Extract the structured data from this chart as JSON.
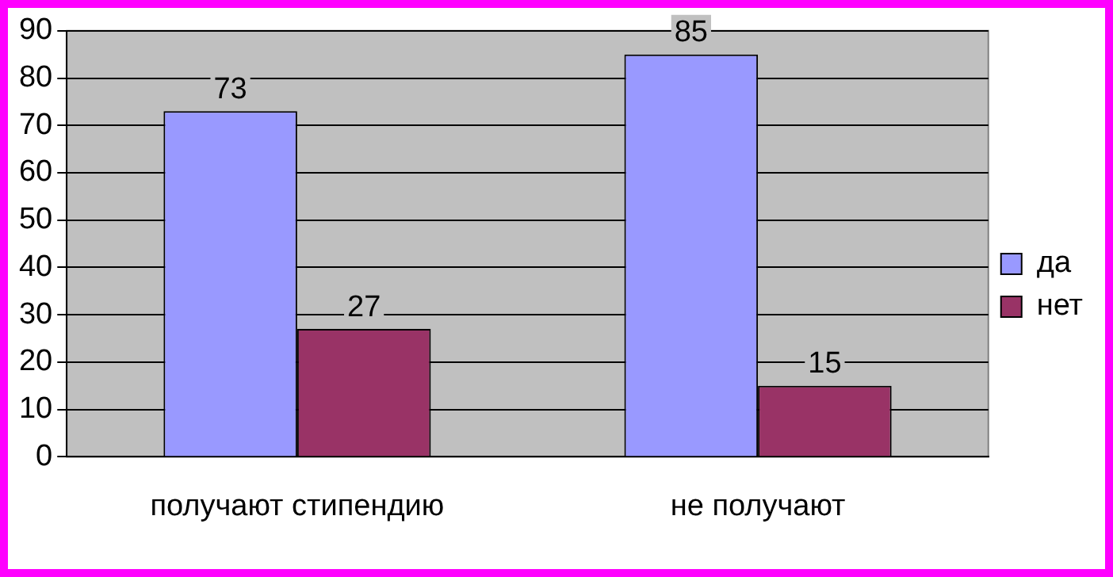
{
  "chart_data": {
    "type": "bar",
    "categories": [
      "получают стипендию",
      "не получают"
    ],
    "series": [
      {
        "name": "да",
        "color": "#9999ff",
        "values": [
          73,
          85
        ]
      },
      {
        "name": "нет",
        "color": "#993366",
        "values": [
          27,
          15
        ]
      }
    ],
    "ylim": [
      0,
      90
    ],
    "yticks": [
      0,
      10,
      20,
      30,
      40,
      50,
      60,
      70,
      80,
      90
    ],
    "grid": "y",
    "legend": "right",
    "data_labels": true
  }
}
